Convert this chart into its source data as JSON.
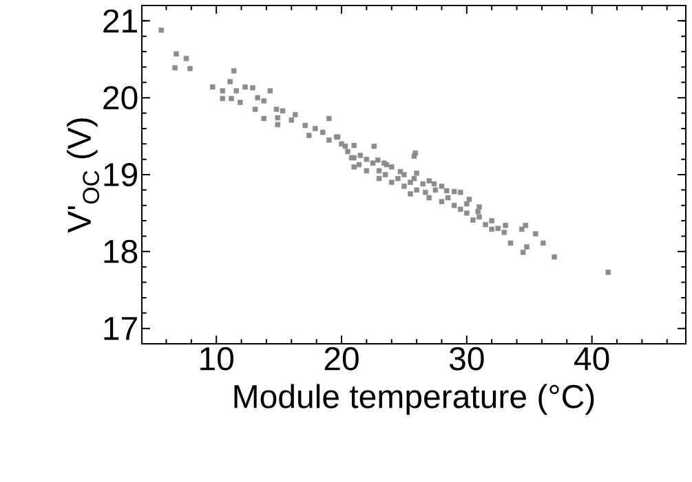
{
  "chart_data": {
    "type": "scatter",
    "xlabel": "Module temperature (°C)",
    "ylabel": "V'$_{OC}$ (V)",
    "xlim": [
      4.05,
      47.5
    ],
    "ylim": [
      16.8,
      21.2
    ],
    "xticks": [
      10,
      20,
      30,
      40,
      {
        "value": 6,
        "label": null
      },
      {
        "value": 8,
        "label": null
      },
      {
        "value": 12,
        "label": null
      },
      {
        "value": 14,
        "label": null
      },
      {
        "value": 16,
        "label": null
      },
      {
        "value": 18,
        "label": null
      },
      {
        "value": 22,
        "label": null
      },
      {
        "value": 24,
        "label": null
      },
      {
        "value": 26,
        "label": null
      },
      {
        "value": 28,
        "label": null
      },
      {
        "value": 32,
        "label": null
      },
      {
        "value": 34,
        "label": null
      },
      {
        "value": 36,
        "label": null
      },
      {
        "value": 38,
        "label": null
      },
      {
        "value": 42,
        "label": null
      },
      {
        "value": 44,
        "label": null
      },
      {
        "value": 46,
        "label": null
      }
    ],
    "yticks": [
      17,
      18,
      19,
      20,
      21,
      {
        "value": 17.2,
        "label": null
      },
      {
        "value": 17.4,
        "label": null
      },
      {
        "value": 17.6,
        "label": null
      },
      {
        "value": 17.8,
        "label": null
      },
      {
        "value": 18.2,
        "label": null
      },
      {
        "value": 18.4,
        "label": null
      },
      {
        "value": 18.6,
        "label": null
      },
      {
        "value": 18.8,
        "label": null
      },
      {
        "value": 19.2,
        "label": null
      },
      {
        "value": 19.4,
        "label": null
      },
      {
        "value": 19.6,
        "label": null
      },
      {
        "value": 19.8,
        "label": null
      },
      {
        "value": 20.2,
        "label": null
      },
      {
        "value": 20.4,
        "label": null
      },
      {
        "value": 20.6,
        "label": null
      },
      {
        "value": 20.8,
        "label": null
      },
      {
        "value": 21.0,
        "label": null
      }
    ],
    "marker": "square",
    "grid": false,
    "series": [
      {
        "color": "#8c8c8c",
        "x": [
          5.6,
          6.8,
          7.6,
          6.7,
          7.9,
          11.4,
          9.7,
          10.5,
          11.1,
          11.6,
          10.5,
          11.2,
          11.9,
          12.3,
          12.9,
          14.3,
          13.3,
          13.8,
          13.1,
          13.8,
          14.8,
          15.3,
          14.9,
          16.3,
          16.0,
          14.9,
          17.1,
          17.9,
          17.4,
          19.0,
          19.6,
          20.3,
          21.0,
          22.9,
          23.6,
          25.8,
          19.7,
          20.8,
          21.4,
          22.6,
          23.4,
          25.9,
          24.7,
          25.8,
          26.7,
          27.4,
          28.4,
          29.5,
          30.2,
          30.5,
          30.9,
          32.0,
          33.1,
          33.5,
          34.4,
          34.7,
          34.8,
          34.5,
          35.5,
          36.1,
          37.0,
          41.3,
          20.0,
          20.5,
          21.0,
          21.5,
          22.0,
          22.0,
          22.5,
          23.0,
          23.5,
          24.0,
          24.0,
          24.5,
          25.0,
          25.0,
          25.5,
          26.0,
          26.0,
          26.5,
          27.0,
          27.0,
          27.5,
          28.0,
          28.0,
          28.5,
          29.0,
          29.0,
          29.5,
          30.0,
          30.0,
          31.0,
          31.5,
          31.0,
          32.0,
          32.5,
          33.0,
          18.5,
          19.0,
          21.0,
          23.0,
          25.5
        ],
        "values": [
          20.88,
          20.57,
          20.51,
          20.39,
          20.38,
          20.35,
          20.14,
          20.09,
          20.21,
          20.09,
          19.99,
          19.99,
          19.94,
          20.14,
          20.13,
          20.09,
          20.0,
          19.96,
          19.85,
          19.73,
          19.85,
          19.83,
          19.74,
          19.78,
          19.71,
          19.65,
          19.64,
          19.6,
          19.51,
          19.73,
          19.49,
          19.37,
          19.22,
          19.19,
          19.13,
          19.24,
          19.49,
          19.22,
          19.13,
          19.37,
          19.15,
          19.28,
          19.04,
          18.95,
          18.77,
          18.88,
          18.79,
          18.77,
          18.68,
          18.41,
          18.52,
          18.29,
          18.34,
          18.11,
          18.29,
          18.34,
          18.06,
          17.99,
          18.23,
          18.11,
          17.93,
          17.73,
          19.4,
          19.3,
          19.38,
          19.25,
          19.2,
          19.05,
          19.15,
          19.05,
          19.0,
          19.1,
          18.9,
          18.95,
          19.0,
          18.85,
          18.9,
          18.8,
          19.02,
          18.88,
          18.7,
          18.92,
          18.8,
          18.65,
          18.85,
          18.7,
          18.6,
          18.78,
          18.55,
          18.5,
          18.62,
          18.45,
          18.35,
          18.58,
          18.4,
          18.3,
          18.25,
          19.55,
          19.45,
          19.1,
          18.95,
          18.75
        ]
      }
    ]
  }
}
